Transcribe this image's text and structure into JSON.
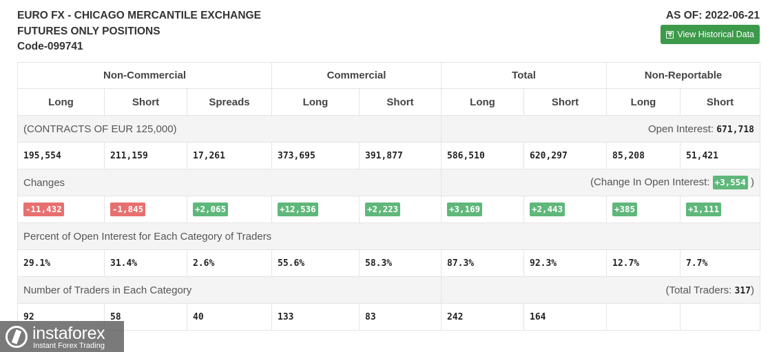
{
  "header": {
    "title_line1": "EURO FX - CHICAGO MERCANTILE EXCHANGE",
    "title_line2": "FUTURES ONLY POSITIONS",
    "code": "Code-099741",
    "as_of": "AS OF: 2022-06-21",
    "historical_button": "View Historical Data",
    "historical_icon": "calendar-plus-icon"
  },
  "groups": {
    "non_commercial": "Non-Commercial",
    "commercial": "Commercial",
    "total": "Total",
    "non_reportable": "Non-Reportable"
  },
  "columns": [
    "Long",
    "Short",
    "Spreads",
    "Long",
    "Short",
    "Long",
    "Short",
    "Long",
    "Short"
  ],
  "contracts": {
    "label": "(CONTRACTS OF EUR 125,000)",
    "open_interest_label": "Open Interest: ",
    "open_interest_value": "671,718"
  },
  "positions": [
    "195,554",
    "211,159",
    "17,261",
    "373,695",
    "391,877",
    "586,510",
    "620,297",
    "85,208",
    "51,421"
  ],
  "changes": {
    "label": "Changes",
    "oi_change_prefix": "(Change In Open Interest: ",
    "oi_change_value": "+3,554",
    "oi_change_suffix": " )",
    "values": [
      "-11,432",
      "-1,845",
      "+2,065",
      "+12,536",
      "+2,223",
      "+3,169",
      "+2,443",
      "+385",
      "+1,111"
    ],
    "negative_color": "#e86f6f",
    "positive_color": "#5fb77a"
  },
  "percent": {
    "label": "Percent of Open Interest for Each Category of Traders",
    "values": [
      "29.1%",
      "31.4%",
      "2.6%",
      "55.6%",
      "58.3%",
      "87.3%",
      "92.3%",
      "12.7%",
      "7.7%"
    ]
  },
  "traders": {
    "label": "Number of Traders in Each Category",
    "total_prefix": "(Total Traders: ",
    "total_value": "317",
    "total_suffix": ")",
    "values": [
      "92",
      "58",
      "40",
      "133",
      "83",
      "242",
      "164",
      "",
      ""
    ]
  },
  "watermark": {
    "name": "instaforex",
    "tagline": "Instant Forex Trading",
    "icon": "instaforex-logo-icon"
  },
  "colors": {
    "button_green": "#3c9a4a",
    "row_label_bg": "#f4f4f4"
  }
}
